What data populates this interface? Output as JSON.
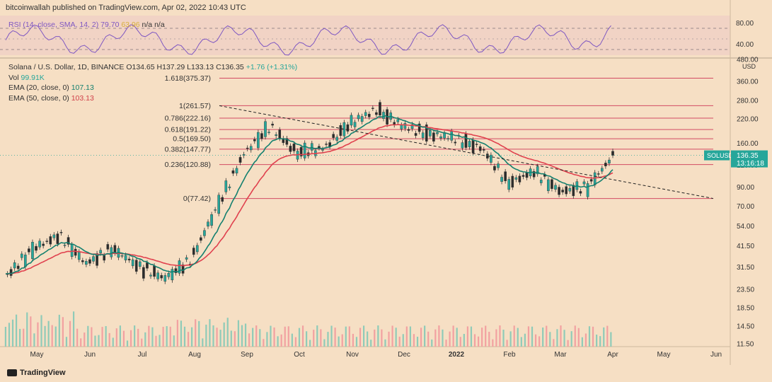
{
  "header": {
    "publisher": "bitcoinwallah published on TradingView.com, Apr 02, 2022 10:43 UTC"
  },
  "rsi": {
    "label": "RSI (14, close, SMA, 14, 2)",
    "value": "79.70",
    "value2": "63.96",
    "na1": "n/a",
    "na2": "n/a",
    "ticks": [
      "80.00",
      "40.00"
    ]
  },
  "legend": {
    "symbol": "Solana / U.S. Dollar, 1D, BINANCE",
    "open": "O134.65",
    "high": "H137.29",
    "low": "L133.13",
    "close": "C136.35",
    "change": "+1.76 (+1.31%)",
    "vol_label": "Vol",
    "vol_value": "99.91K",
    "ema20_label": "EMA (20, close, 0)",
    "ema20_value": "107.13",
    "ema50_label": "EMA (50, close, 0)",
    "ema50_value": "103.13"
  },
  "price_tag": {
    "symbol": "SOLUSD",
    "price": "136.35",
    "countdown": "13:16:18"
  },
  "branding": "TradingView",
  "colors": {
    "background": "#f6dfc4",
    "up": "#26a69a",
    "down": "#ef5350",
    "ema20": "#14806f",
    "ema50": "#e0414e",
    "fib": "#d24b63",
    "rsi": "#7e57c2"
  },
  "chart_data": {
    "type": "candlestick",
    "title": "Solana / U.S. Dollar, 1D, BINANCE",
    "y_scale": "log",
    "y_unit": "USD",
    "yticks": [
      "480.00",
      "360.00",
      "280.00",
      "220.00",
      "160.00",
      "120.00",
      "90.00",
      "70.00",
      "54.00",
      "41.50",
      "31.50",
      "23.50",
      "18.50",
      "14.50",
      "11.50"
    ],
    "x_labels": [
      "May",
      "Jun",
      "Jul",
      "Aug",
      "Sep",
      "Oct",
      "Nov",
      "Dec",
      "2022",
      "Feb",
      "Mar",
      "Apr",
      "May",
      "Jun"
    ],
    "fib_levels": [
      {
        "ratio": "1.618",
        "price": 375.37
      },
      {
        "ratio": "1",
        "price": 261.57
      },
      {
        "ratio": "0.786",
        "price": 222.16
      },
      {
        "ratio": "0.618",
        "price": 191.22
      },
      {
        "ratio": "0.5",
        "price": 169.5
      },
      {
        "ratio": "0.382",
        "price": 147.77
      },
      {
        "ratio": "0.236",
        "price": 120.88
      },
      {
        "ratio": "0",
        "price": 77.42
      }
    ],
    "fib_labels": [
      "1.618(375.37)",
      "1(261.57)",
      "0.786(222.16)",
      "0.618(191.22)",
      "0.5(169.50)",
      "0.382(147.77)",
      "0.236(120.88)",
      "0(77.42)"
    ],
    "trendline": {
      "from": [
        "Sep",
        261.57
      ],
      "to": [
        "Apr",
        77.42
      ],
      "style": "dashed"
    },
    "anchors": [
      [
        "Apr",
        28
      ],
      [
        "May",
        40
      ],
      [
        "May",
        48
      ],
      [
        "Jun",
        33
      ],
      [
        "Jun",
        40
      ],
      [
        "Jul",
        32
      ],
      [
        "Jul",
        27
      ],
      [
        "Aug",
        35
      ],
      [
        "Aug",
        70
      ],
      [
        "Sep",
        140
      ],
      [
        "Sep",
        200
      ],
      [
        "Oct",
        140
      ],
      [
        "Oct",
        150
      ],
      [
        "Nov",
        205
      ],
      [
        "Nov",
        250
      ],
      [
        "Dec",
        200
      ],
      [
        "Dec",
        180
      ],
      [
        "2022",
        170
      ],
      [
        "2022",
        150
      ],
      [
        "Feb",
        95
      ],
      [
        "Feb",
        110
      ],
      [
        "Mar",
        85
      ],
      [
        "Mar",
        90
      ],
      [
        "Apr",
        136.35
      ]
    ],
    "series": [
      {
        "name": "EMA (20, close, 0)",
        "last": 107.13
      },
      {
        "name": "EMA (50, close, 0)",
        "last": 103.13
      }
    ],
    "last_close": 136.35,
    "grid": false
  }
}
